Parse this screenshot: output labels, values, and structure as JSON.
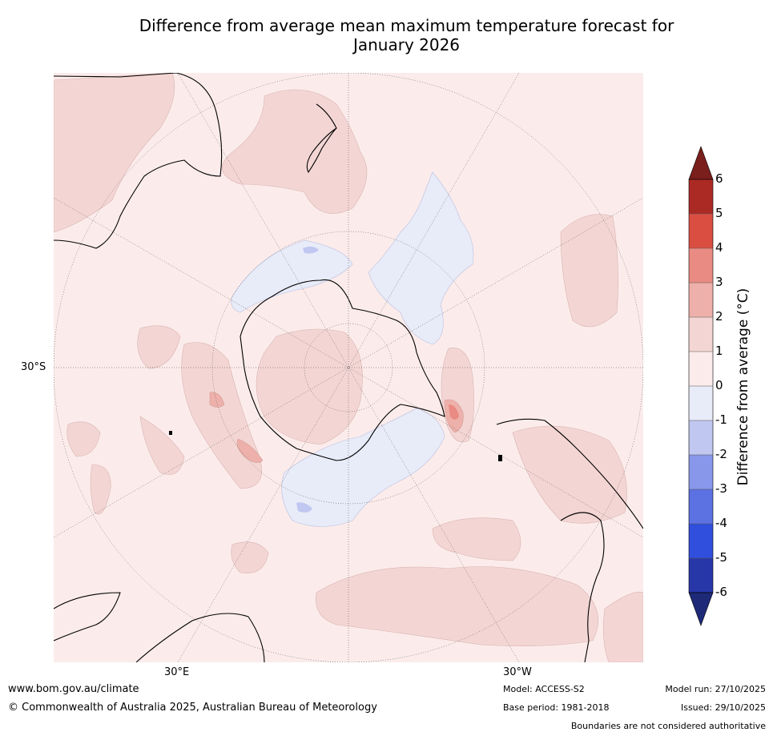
{
  "title_line1": "Difference from average mean maximum temperature forecast for",
  "title_line2": "January 2026",
  "axis_labels": {
    "lat_30s": "30°S",
    "lon_30e": "30°E",
    "lon_30w": "30°W"
  },
  "colorbar": {
    "label": "Difference from average (°C)",
    "ticks": [
      "6",
      "5",
      "4",
      "3",
      "2",
      "1",
      "0",
      "-1",
      "-2",
      "-3",
      "-4",
      "-5",
      "-6"
    ],
    "colors": {
      "above_6": "#7a1f1c",
      "5_to_6": "#ac2a24",
      "4_to_5": "#da4e42",
      "3_to_4": "#e98b82",
      "2_to_3": "#eeb0aa",
      "1_to_2": "#f3d6d4",
      "0_to_1": "#fbeceb",
      "m1_to_0": "#e8ebf8",
      "m2_to_m1": "#c0c7f0",
      "m3_to_m2": "#8897ea",
      "m4_to_m3": "#5c71e2",
      "m5_to_m4": "#304fdc",
      "m6_to_m5": "#2837a8",
      "below_m6": "#1e2a78"
    }
  },
  "footer": {
    "url": "www.bom.gov.au/climate",
    "copyright": "© Commonwealth of Australia 2025, Australian Bureau of Meteorology",
    "model": "Model: ACCESS-S2",
    "base_period": "Base period: 1981-2018",
    "model_run": "Model run: 27/10/2025",
    "issued": "Issued: 29/10/2025",
    "boundaries": "Boundaries are not considered authoritative"
  }
}
